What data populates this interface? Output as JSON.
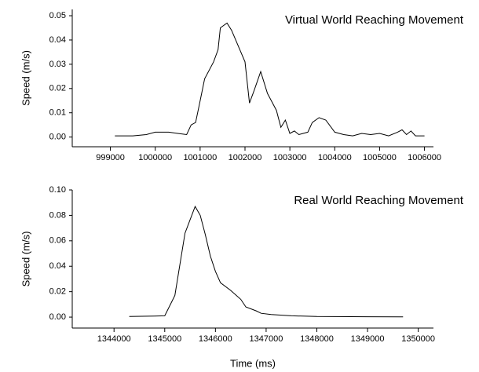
{
  "chart_data": [
    {
      "type": "line",
      "title": "Virtual World Reaching Movement",
      "ylabel": "Speed (m/s)",
      "x": [
        999100,
        999500,
        999800,
        1000000,
        1000300,
        1000500,
        1000700,
        1000800,
        1000900,
        1001000,
        1001100,
        1001300,
        1001400,
        1001450,
        1001600,
        1001700,
        1002000,
        1002100,
        1002200,
        1002350,
        1002500,
        1002700,
        1002800,
        1002900,
        1003000,
        1003100,
        1003200,
        1003400,
        1003500,
        1003650,
        1003800,
        1004000,
        1004200,
        1004400,
        1004600,
        1004800,
        1005000,
        1005200,
        1005400,
        1005500,
        1005600,
        1005700,
        1005800,
        1006000
      ],
      "series": [
        {
          "name": "Virtual",
          "color": "#000000",
          "values": [
            0.0005,
            0.0005,
            0.001,
            0.002,
            0.002,
            0.0015,
            0.001,
            0.005,
            0.006,
            0.015,
            0.024,
            0.031,
            0.036,
            0.045,
            0.047,
            0.044,
            0.031,
            0.014,
            0.019,
            0.027,
            0.018,
            0.011,
            0.004,
            0.007,
            0.0015,
            0.0025,
            0.001,
            0.002,
            0.006,
            0.008,
            0.007,
            0.002,
            0.001,
            0.0005,
            0.0015,
            0.001,
            0.0015,
            0.0005,
            0.002,
            0.003,
            0.001,
            0.0025,
            0.0005,
            0.0005
          ]
        }
      ],
      "xlim": [
        998150,
        1006200
      ],
      "xticks": [
        999000,
        1000000,
        1001000,
        1002000,
        1003000,
        1004000,
        1005000,
        1006000
      ],
      "ylim": [
        -0.004,
        0.0526
      ],
      "yticks": [
        {
          "value": 0,
          "label": "0.00"
        },
        {
          "value": 0.01,
          "label": "0.01"
        },
        {
          "value": 0.02,
          "label": "0.02"
        },
        {
          "value": 0.03,
          "label": "0.03"
        },
        {
          "value": 0.04,
          "label": "0.04"
        },
        {
          "value": 0.05,
          "label": "0.05"
        }
      ]
    },
    {
      "type": "line",
      "title": "Real World Reaching Movement",
      "ylabel": "Speed (m/s)",
      "xlabel": "Time (ms)",
      "x": [
        1344300,
        1344800,
        1345000,
        1345200,
        1345400,
        1345600,
        1345700,
        1345800,
        1345900,
        1346000,
        1346100,
        1346300,
        1346500,
        1346600,
        1346800,
        1346900,
        1347100,
        1347500,
        1348000,
        1349000,
        1349700
      ],
      "series": [
        {
          "name": "Real",
          "color": "#000000",
          "values": [
            0.0005,
            0.0008,
            0.001,
            0.017,
            0.066,
            0.087,
            0.08,
            0.065,
            0.048,
            0.036,
            0.027,
            0.021,
            0.014,
            0.008,
            0.005,
            0.003,
            0.002,
            0.001,
            0.0005,
            0.0003,
            0.0002
          ]
        }
      ],
      "xlim": [
        1343176,
        1350300
      ],
      "xticks": [
        1344000,
        1345000,
        1346000,
        1347000,
        1348000,
        1349000,
        1350000
      ],
      "ylim": [
        -0.0086,
        0.1
      ],
      "yticks": [
        {
          "value": 0,
          "label": "0.00"
        },
        {
          "value": 0.02,
          "label": "0.02"
        },
        {
          "value": 0.04,
          "label": "0.04"
        },
        {
          "value": 0.06,
          "label": "0.06"
        },
        {
          "value": 0.08,
          "label": "0.08"
        },
        {
          "value": 0.1,
          "label": "0.10"
        }
      ]
    }
  ]
}
